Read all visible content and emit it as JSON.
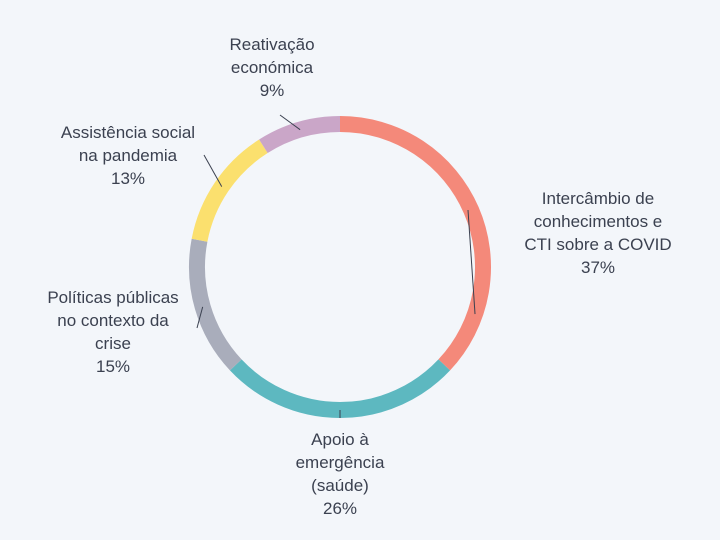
{
  "chart_data": {
    "type": "pie",
    "donut": true,
    "legend": "none",
    "slices": [
      {
        "label_lines": [
          "Intercâmbio de",
          "conhecimentos e",
          "CTI sobre a COVID"
        ],
        "value": 37,
        "value_label": "37%",
        "color": "#f4897a"
      },
      {
        "label_lines": [
          "Apoio à",
          "emergência",
          "(saúde)"
        ],
        "value": 26,
        "value_label": "26%",
        "color": "#5db8c0"
      },
      {
        "label_lines": [
          "Políticas públicas",
          "no contexto da",
          "crise"
        ],
        "value": 15,
        "value_label": "15%",
        "color": "#a9adbb"
      },
      {
        "label_lines": [
          "Assistência social",
          "na pandemia"
        ],
        "value": 13,
        "value_label": "13%",
        "color": "#fbe06e"
      },
      {
        "label_lines": [
          "Reativação",
          "económica"
        ],
        "value": 9,
        "value_label": "9%",
        "color": "#caa6c8"
      }
    ]
  }
}
